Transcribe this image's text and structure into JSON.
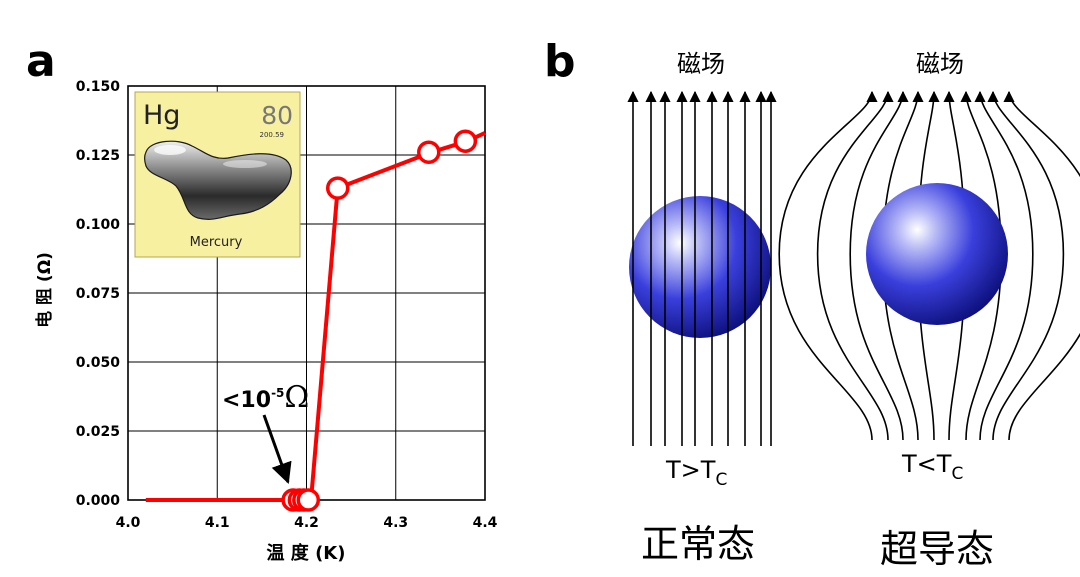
{
  "panel_a": {
    "label": "a",
    "inset": {
      "symbol": "Hg",
      "atomic_number": "80",
      "atomic_mass": "200.59",
      "name": "Mercury",
      "card_color": "#f7f0a0"
    }
  },
  "panel_b": {
    "label": "b",
    "field_label_left": "磁场",
    "field_label_right": "磁场",
    "cond_left": {
      "main": "T>T",
      "sub": "C"
    },
    "cond_right": {
      "main": "T<T",
      "sub": "C"
    },
    "state_left": "正常态",
    "state_right": "超导态",
    "sphere_color": "#2a2fd6"
  },
  "chart_data": {
    "type": "line",
    "xlabel": "温 度 (K)",
    "ylabel": "电 阻 (Ω)",
    "xlim": [
      4.0,
      4.4
    ],
    "ylim": [
      0.0,
      0.15
    ],
    "xticks": [
      "4.0",
      "4.1",
      "4.2",
      "4.3",
      "4.4"
    ],
    "yticks": [
      "0.000",
      "0.025",
      "0.050",
      "0.075",
      "0.100",
      "0.125",
      "0.150"
    ],
    "grid": true,
    "line_color": "#ff0000",
    "line": {
      "x": [
        4.02,
        4.18,
        4.185,
        4.195,
        4.2,
        4.205,
        4.235,
        4.34,
        4.38,
        4.4
      ],
      "y": [
        0.0,
        0.0,
        0.0,
        0.0,
        0.0,
        0.0,
        0.113,
        0.126,
        0.13,
        0.133
      ]
    },
    "markers": {
      "x": [
        4.185,
        4.192,
        4.197,
        4.202,
        4.235,
        4.337,
        4.378
      ],
      "y": [
        0.0,
        0.0,
        0.0,
        0.0,
        0.113,
        0.126,
        0.13
      ]
    },
    "annotation": {
      "text": "<10",
      "sup": "-5",
      "unit": "Ω",
      "x": 4.19,
      "y": 0.0
    }
  }
}
